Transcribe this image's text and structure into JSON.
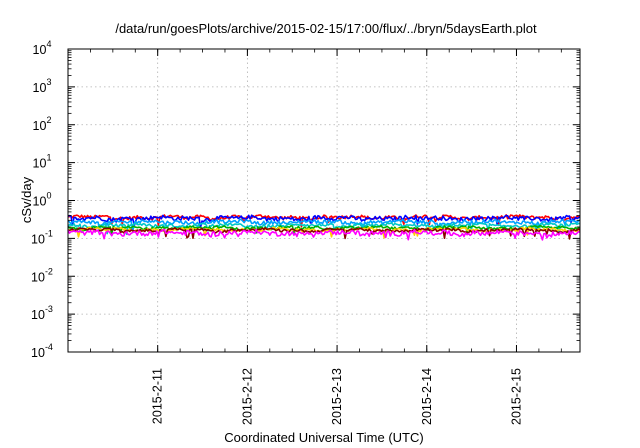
{
  "chart_data": {
    "type": "line",
    "title": "/data/run/goesPlots/archive/2015-02-15/17:00/flux/../bryn/5daysEarth.plot",
    "xlabel": "Coordinated Universal Time (UTC)",
    "ylabel": "cSv/day",
    "y_scale": "log",
    "ylim": [
      0.0001,
      10000
    ],
    "y_ticks": [
      {
        "base": "10",
        "exp": "-4",
        "value": 0.0001
      },
      {
        "base": "10",
        "exp": "-3",
        "value": 0.001
      },
      {
        "base": "10",
        "exp": "-2",
        "value": 0.01
      },
      {
        "base": "10",
        "exp": "-1",
        "value": 0.1
      },
      {
        "base": "10",
        "exp": "0",
        "value": 1
      },
      {
        "base": "10",
        "exp": "1",
        "value": 10
      },
      {
        "base": "10",
        "exp": "2",
        "value": 100
      },
      {
        "base": "10",
        "exp": "3",
        "value": 1000
      },
      {
        "base": "10",
        "exp": "4",
        "value": 10000
      }
    ],
    "x_range": [
      "2015-02-10T00:00",
      "2015-02-15T17:00"
    ],
    "x_ticks": [
      "2015-2-11",
      "2015-2-12",
      "2015-2-13",
      "2015-2-14",
      "2015-2-15"
    ],
    "grid": true,
    "series": [
      {
        "color": "#ff0000",
        "base_value": 0.36,
        "noise": 0.1
      },
      {
        "color": "#0000ff",
        "base_value": 0.34,
        "noise": 0.12
      },
      {
        "color": "#00a0ff",
        "base_value": 0.27,
        "noise": 0.1
      },
      {
        "color": "#00c8c8",
        "base_value": 0.22,
        "noise": 0.08
      },
      {
        "color": "#00b000",
        "base_value": 0.19,
        "noise": 0.07
      },
      {
        "color": "#ffd000",
        "base_value": 0.17,
        "noise": 0.07
      },
      {
        "color": "#8b0000",
        "base_value": 0.165,
        "noise": 0.07
      },
      {
        "color": "#ff00ff",
        "base_value": 0.14,
        "noise": 0.13
      }
    ]
  }
}
